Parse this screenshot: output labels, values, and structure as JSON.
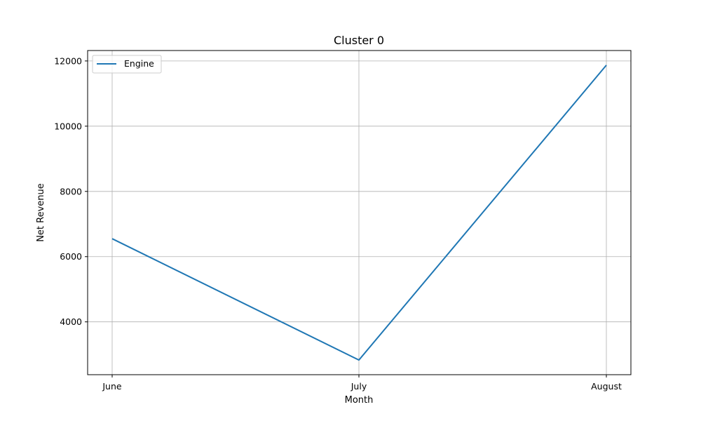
{
  "chart_data": {
    "type": "line",
    "title": "Cluster 0",
    "xlabel": "Month",
    "ylabel": "Net Revenue",
    "categories": [
      "June",
      "July",
      "August"
    ],
    "series": [
      {
        "name": "Engine",
        "color": "#1f77b4",
        "values": [
          6550,
          2830,
          11870
        ]
      }
    ],
    "ylim": [
      2380,
      12320
    ],
    "yticks": [
      4000,
      6000,
      8000,
      10000,
      12000
    ],
    "grid": true,
    "legend_position": "top-left"
  }
}
